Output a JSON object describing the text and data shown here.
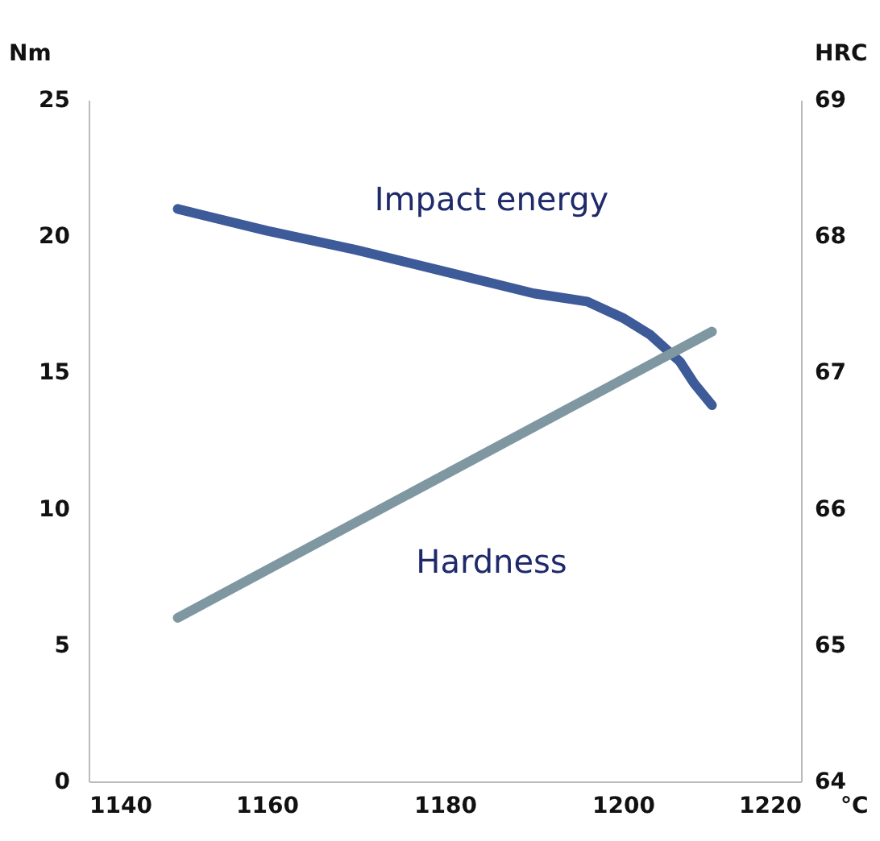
{
  "chart_data": {
    "type": "line",
    "xlabel": "°C",
    "ylabel": "Nm",
    "y2label": "HRC",
    "xlim": [
      1140,
      1220
    ],
    "xticks": [
      1140,
      1160,
      1180,
      1200,
      1220
    ],
    "ylim": [
      0,
      25
    ],
    "yticks": [
      0,
      5,
      10,
      15,
      20,
      25
    ],
    "y2lim": [
      64,
      69
    ],
    "y2ticks": [
      64,
      65,
      66,
      67,
      68,
      69
    ],
    "grid": false,
    "marker": "none",
    "line_style": "solid",
    "series": [
      {
        "name": "Impact energy",
        "color": "#3d5a99",
        "x": [
          1150,
          1160,
          1170,
          1180,
          1190,
          1196,
          1200,
          1203,
          1206.4,
          1208,
          1210
        ],
        "values": [
          21.0,
          20.2,
          19.5,
          18.7,
          17.9,
          17.6,
          17.0,
          16.4,
          15.4,
          14.6,
          13.8
        ]
      },
      {
        "name": "Hardness",
        "color": "#7f97a0",
        "axis": "y2",
        "x": [
          1150,
          1210
        ],
        "values": [
          65.2,
          67.3
        ]
      }
    ]
  }
}
